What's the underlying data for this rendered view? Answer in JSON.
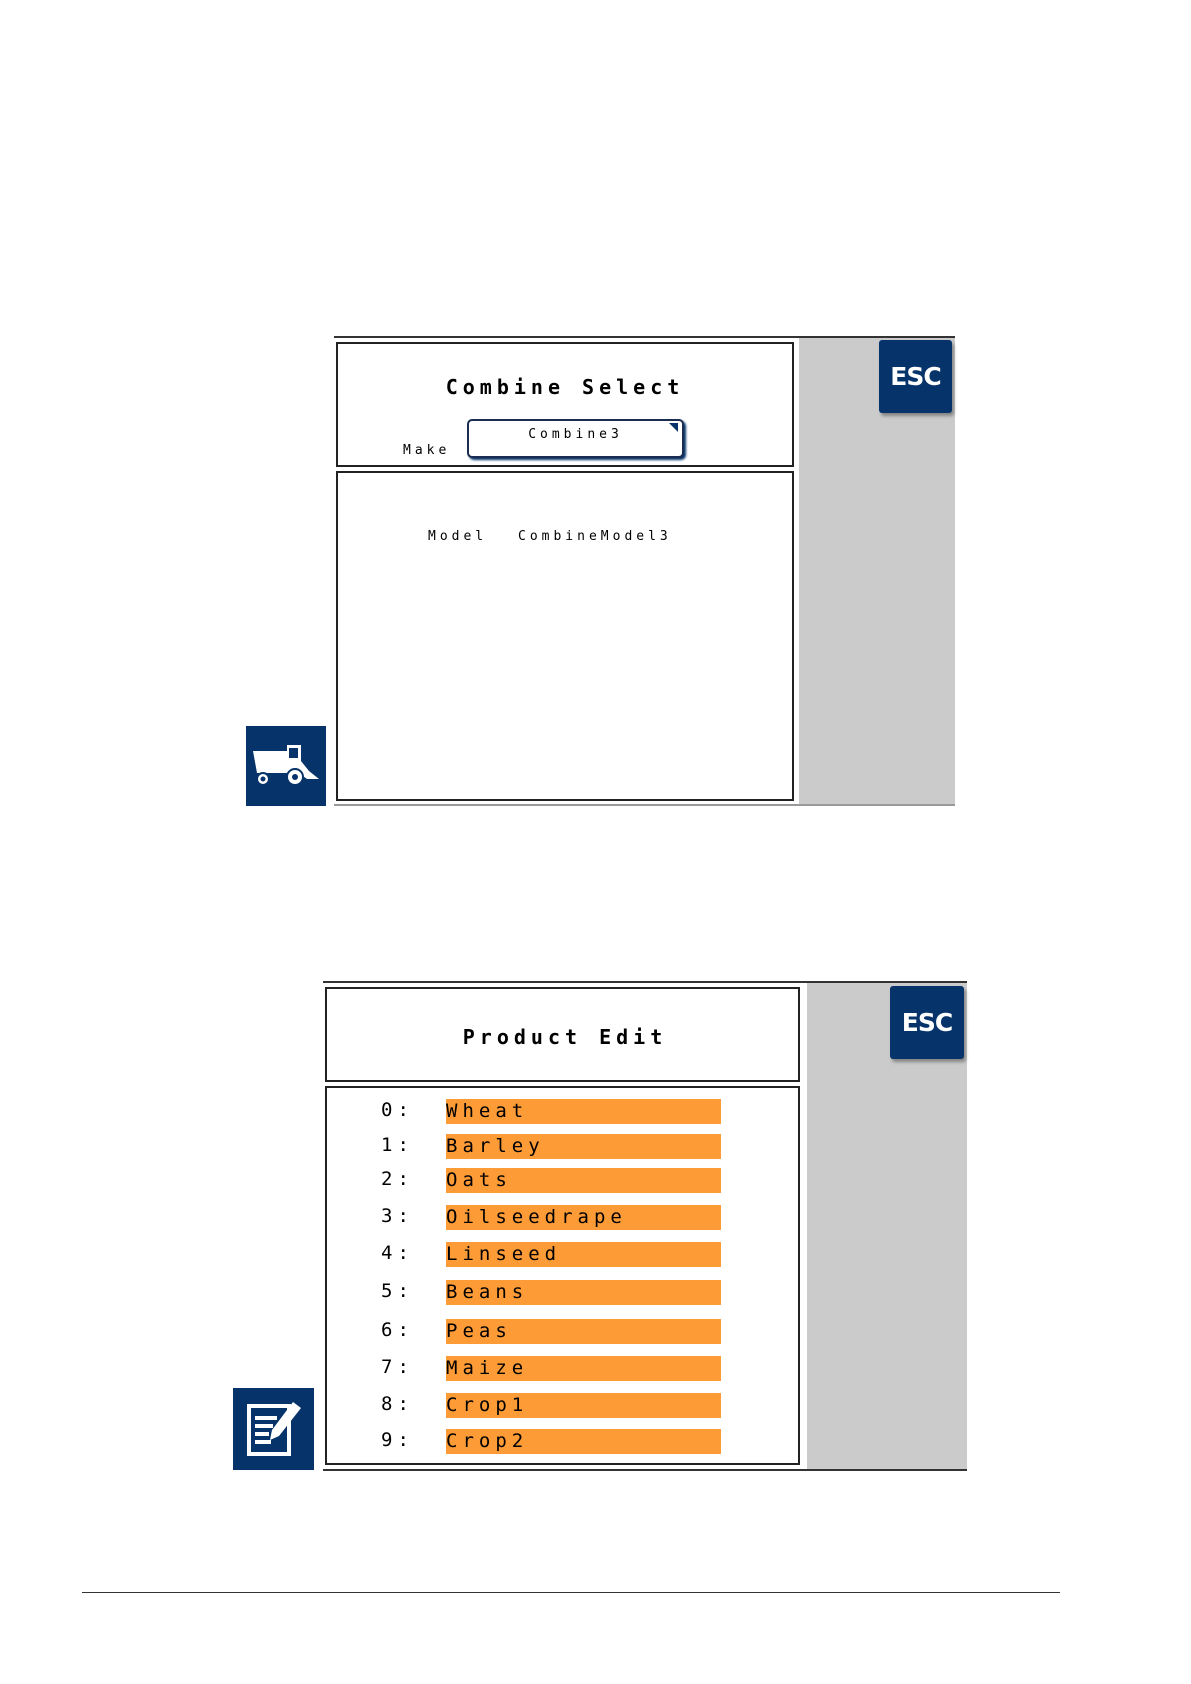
{
  "combine_select": {
    "title": "Combine Select",
    "make_label": "Make",
    "make_value": "Combine3",
    "model_label": "Model",
    "model_value": "CombineModel3",
    "esc_label": "ESC",
    "icon": "combine-harvester-icon"
  },
  "product_edit": {
    "title": "Product Edit",
    "esc_label": "ESC",
    "icon": "edit-document-icon",
    "items": [
      {
        "index": "0:",
        "name": "Wheat"
      },
      {
        "index": "1:",
        "name": "Barley"
      },
      {
        "index": "2:",
        "name": "Oats"
      },
      {
        "index": "3:",
        "name": "Oilseedrape"
      },
      {
        "index": "4:",
        "name": "Linseed"
      },
      {
        "index": "5:",
        "name": "Beans"
      },
      {
        "index": "6:",
        "name": "Peas"
      },
      {
        "index": "7:",
        "name": "Maize"
      },
      {
        "index": "8:",
        "name": "Crop1"
      },
      {
        "index": "9:",
        "name": "Crop2"
      }
    ]
  },
  "colors": {
    "accent": "#06346a",
    "item_highlight": "#fd9b37",
    "side_panel": "#cbcbcb"
  }
}
